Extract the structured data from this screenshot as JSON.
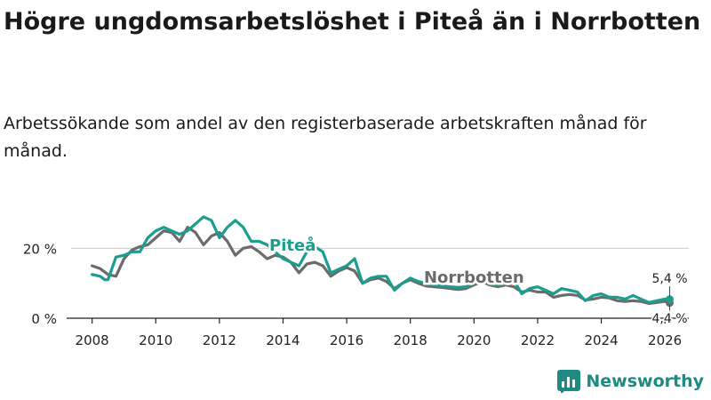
{
  "title": "Högre ungdomsarbetslöshet i Piteå än i Norrbotten",
  "subtitle": "Arbetssökande som andel av den registerbaserade arbetskraften månad för månad.",
  "brand": {
    "name": "Newsworthy",
    "icon": "bar-chart-logo-icon"
  },
  "colors": {
    "pitea": "#1a9e8f",
    "norrbotten": "#6b6b6b",
    "axis": "#222222",
    "grid": "#cccccc"
  },
  "chart_data": {
    "type": "line",
    "title": "Högre ungdomsarbetslöshet i Piteå än i Norrbotten",
    "xlabel": "",
    "ylabel": "",
    "xlim": [
      2007.2,
      2026.75
    ],
    "ylim": [
      0,
      30
    ],
    "x_ticks": [
      2008,
      2010,
      2012,
      2014,
      2016,
      2018,
      2020,
      2022,
      2024,
      2026
    ],
    "x_tick_labels": [
      "2008",
      "2010",
      "2012",
      "2014",
      "2016",
      "2018",
      "2020",
      "2022",
      "2024",
      "2026"
    ],
    "y_ticks": [
      0,
      20
    ],
    "y_tick_labels": [
      "0 %",
      "20 %"
    ],
    "series": [
      {
        "name": "Norrbotten",
        "color": "#6b6b6b",
        "label_at": [
          2020.0,
          10.2
        ],
        "end_label": "4,4 %",
        "points": [
          [
            2008,
            15
          ],
          [
            2008.25,
            14.2
          ],
          [
            2008.5,
            12.5
          ],
          [
            2008.75,
            12
          ],
          [
            2009,
            17
          ],
          [
            2009.25,
            19.5
          ],
          [
            2009.5,
            20.5
          ],
          [
            2009.75,
            21
          ],
          [
            2010,
            23
          ],
          [
            2010.25,
            25
          ],
          [
            2010.5,
            24.5
          ],
          [
            2010.75,
            22
          ],
          [
            2011,
            26
          ],
          [
            2011.25,
            24.5
          ],
          [
            2011.5,
            21
          ],
          [
            2011.75,
            23.5
          ],
          [
            2012,
            24.5
          ],
          [
            2012.25,
            22
          ],
          [
            2012.5,
            18
          ],
          [
            2012.75,
            20
          ],
          [
            2013,
            20.5
          ],
          [
            2013.25,
            19
          ],
          [
            2013.5,
            17
          ],
          [
            2013.75,
            18
          ],
          [
            2014,
            17.5
          ],
          [
            2014.25,
            16
          ],
          [
            2014.5,
            13
          ],
          [
            2014.75,
            15.5
          ],
          [
            2015,
            16
          ],
          [
            2015.25,
            15
          ],
          [
            2015.5,
            12
          ],
          [
            2015.75,
            13.5
          ],
          [
            2016,
            14.5
          ],
          [
            2016.25,
            13.5
          ],
          [
            2016.5,
            10
          ],
          [
            2016.75,
            11
          ],
          [
            2017,
            11.5
          ],
          [
            2017.25,
            10.5
          ],
          [
            2017.5,
            8.5
          ],
          [
            2017.75,
            10
          ],
          [
            2018,
            11
          ],
          [
            2018.25,
            10
          ],
          [
            2018.5,
            9.2
          ],
          [
            2018.75,
            9
          ],
          [
            2019,
            8.8
          ],
          [
            2019.25,
            8.5
          ],
          [
            2019.5,
            8.2
          ],
          [
            2019.75,
            8.5
          ],
          [
            2020,
            9.5
          ],
          [
            2020.25,
            10.5
          ],
          [
            2020.5,
            9.5
          ],
          [
            2020.75,
            9
          ],
          [
            2021,
            9.5
          ],
          [
            2021.25,
            9
          ],
          [
            2021.5,
            7.5
          ],
          [
            2021.75,
            8
          ],
          [
            2022,
            7.5
          ],
          [
            2022.25,
            7.5
          ],
          [
            2022.5,
            6
          ],
          [
            2022.75,
            6.5
          ],
          [
            2023,
            6.8
          ],
          [
            2023.25,
            6.5
          ],
          [
            2023.5,
            5.2
          ],
          [
            2023.75,
            5.5
          ],
          [
            2024,
            6
          ],
          [
            2024.25,
            5.8
          ],
          [
            2024.5,
            5
          ],
          [
            2024.75,
            4.8
          ],
          [
            2025,
            5
          ],
          [
            2025.25,
            4.8
          ],
          [
            2025.5,
            4.2
          ],
          [
            2025.75,
            4.5
          ],
          [
            2026,
            4.8
          ],
          [
            2026.15,
            4.4
          ]
        ]
      },
      {
        "name": "Piteå",
        "color": "#1a9e8f",
        "label_at": [
          2014.3,
          19.3
        ],
        "end_label": "5,4 %",
        "points": [
          [
            2008,
            12.5
          ],
          [
            2008.25,
            12
          ],
          [
            2008.4,
            11
          ],
          [
            2008.5,
            11
          ],
          [
            2008.75,
            17.5
          ],
          [
            2009,
            18
          ],
          [
            2009.25,
            19
          ],
          [
            2009.5,
            19
          ],
          [
            2009.75,
            23
          ],
          [
            2010,
            25
          ],
          [
            2010.25,
            26
          ],
          [
            2010.5,
            25
          ],
          [
            2010.75,
            24
          ],
          [
            2011,
            25
          ],
          [
            2011.25,
            27
          ],
          [
            2011.5,
            29
          ],
          [
            2011.75,
            28
          ],
          [
            2012,
            23
          ],
          [
            2012.25,
            26
          ],
          [
            2012.5,
            28
          ],
          [
            2012.75,
            26
          ],
          [
            2013,
            22
          ],
          [
            2013.25,
            22
          ],
          [
            2013.5,
            21
          ],
          [
            2013.75,
            19
          ],
          [
            2014,
            17
          ],
          [
            2014.25,
            16
          ],
          [
            2014.5,
            15
          ],
          [
            2014.75,
            19
          ],
          [
            2015,
            20.5
          ],
          [
            2015.25,
            19
          ],
          [
            2015.5,
            13
          ],
          [
            2015.75,
            14
          ],
          [
            2016,
            15
          ],
          [
            2016.25,
            17
          ],
          [
            2016.5,
            10
          ],
          [
            2016.75,
            11.5
          ],
          [
            2017,
            12
          ],
          [
            2017.25,
            12
          ],
          [
            2017.5,
            8
          ],
          [
            2017.75,
            10
          ],
          [
            2018,
            11.5
          ],
          [
            2018.25,
            10.5
          ],
          [
            2018.5,
            10
          ],
          [
            2018.75,
            9.5
          ],
          [
            2019,
            9.2
          ],
          [
            2019.25,
            9
          ],
          [
            2019.5,
            8.8
          ],
          [
            2019.75,
            9
          ],
          [
            2020,
            10
          ],
          [
            2020.25,
            10.5
          ],
          [
            2020.5,
            10
          ],
          [
            2020.75,
            9.5
          ],
          [
            2021,
            10.5
          ],
          [
            2021.25,
            11
          ],
          [
            2021.5,
            7
          ],
          [
            2021.75,
            8.5
          ],
          [
            2022,
            9
          ],
          [
            2022.25,
            8
          ],
          [
            2022.5,
            7
          ],
          [
            2022.75,
            8.5
          ],
          [
            2023,
            8
          ],
          [
            2023.25,
            7.5
          ],
          [
            2023.5,
            5
          ],
          [
            2023.75,
            6.5
          ],
          [
            2024,
            7
          ],
          [
            2024.25,
            6
          ],
          [
            2024.5,
            6
          ],
          [
            2024.75,
            5.5
          ],
          [
            2025,
            6.5
          ],
          [
            2025.25,
            5.5
          ],
          [
            2025.5,
            4.5
          ],
          [
            2025.75,
            5
          ],
          [
            2026,
            5.5
          ],
          [
            2026.15,
            5.4
          ]
        ]
      }
    ]
  }
}
